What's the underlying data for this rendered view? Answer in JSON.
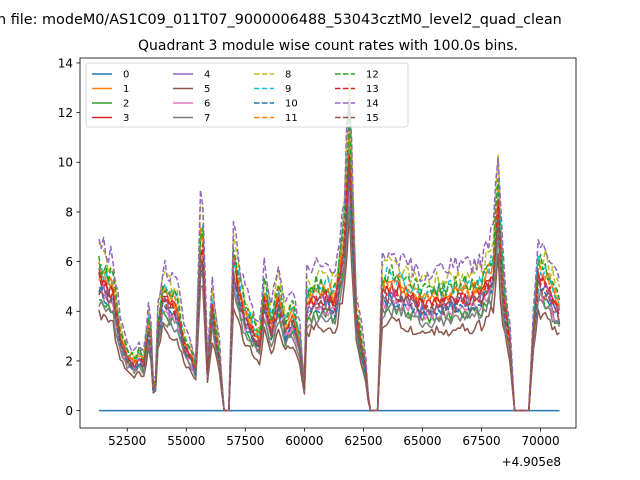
{
  "chart_data": {
    "type": "line",
    "suptitle": "n file: modeM0/AS1C09_011T07_9000006488_53043cztM0_level2_quad_clean",
    "title": "Quadrant 3 module wise count rates with 100.0s bins.",
    "xlabel": "",
    "ylabel": "",
    "x_offset_label": "+4.905e8",
    "xlim": [
      50500,
      71500
    ],
    "ylim": [
      -0.7,
      14.2
    ],
    "x_ticks": [
      52500,
      55000,
      57500,
      60000,
      62500,
      65000,
      67500,
      70000
    ],
    "x_tick_labels": [
      "52500",
      "55000",
      "57500",
      "60000",
      "62500",
      "65000",
      "67500",
      "70000"
    ],
    "y_ticks": [
      0,
      2,
      4,
      6,
      8,
      10,
      12,
      14
    ],
    "y_tick_labels": [
      "0",
      "2",
      "4",
      "6",
      "8",
      "10",
      "12",
      "14"
    ],
    "grid": false,
    "legend_position": "upper-left",
    "legend_columns": 4,
    "x_range": [
      51300,
      70800
    ],
    "bin_width": 100,
    "profile_anchors": [
      [
        51300,
        1.0
      ],
      [
        51500,
        0.95
      ],
      [
        51900,
        0.88
      ],
      [
        52200,
        0.55
      ],
      [
        52500,
        0.4
      ],
      [
        52800,
        0.35
      ],
      [
        53000,
        0.4
      ],
      [
        53200,
        0.35
      ],
      [
        53450,
        0.7
      ],
      [
        53650,
        0.0
      ],
      [
        53800,
        0.6
      ],
      [
        54000,
        0.85
      ],
      [
        54300,
        0.8
      ],
      [
        54600,
        0.75
      ],
      [
        54900,
        0.5
      ],
      [
        55200,
        0.4
      ],
      [
        55400,
        0.3
      ],
      [
        55650,
        1.45
      ],
      [
        55900,
        0.3
      ],
      [
        56100,
        0.75
      ],
      [
        56400,
        0.4
      ],
      [
        56600,
        0.0
      ],
      [
        56800,
        0.0
      ],
      [
        57000,
        1.1
      ],
      [
        57200,
        0.9
      ],
      [
        57500,
        0.7
      ],
      [
        57800,
        0.6
      ],
      [
        58100,
        0.5
      ],
      [
        58300,
        0.85
      ],
      [
        58600,
        0.6
      ],
      [
        58900,
        0.85
      ],
      [
        59200,
        0.6
      ],
      [
        59500,
        0.7
      ],
      [
        59800,
        0.5
      ],
      [
        60000,
        0.18
      ],
      [
        60100,
        0.8
      ],
      [
        60500,
        0.85
      ],
      [
        61000,
        0.85
      ],
      [
        61300,
        0.8
      ],
      [
        61700,
        1.3
      ],
      [
        61900,
        1.95
      ],
      [
        62200,
        0.7
      ],
      [
        62600,
        0.3
      ],
      [
        62750,
        0.0
      ],
      [
        63100,
        0.0
      ],
      [
        63300,
        0.9
      ],
      [
        63600,
        0.92
      ],
      [
        64000,
        0.9
      ],
      [
        64500,
        0.85
      ],
      [
        65000,
        0.8
      ],
      [
        65500,
        0.82
      ],
      [
        66000,
        0.82
      ],
      [
        66500,
        0.85
      ],
      [
        67000,
        0.85
      ],
      [
        67500,
        0.88
      ],
      [
        68000,
        1.05
      ],
      [
        68200,
        1.55
      ],
      [
        68400,
        0.9
      ],
      [
        68700,
        0.5
      ],
      [
        68900,
        0.0
      ],
      [
        69500,
        0.0
      ],
      [
        69700,
        0.6
      ],
      [
        69900,
        1.0
      ],
      [
        70200,
        0.95
      ],
      [
        70500,
        0.85
      ],
      [
        70800,
        0.75
      ]
    ],
    "series": [
      {
        "name": "0",
        "color": "#1f77b4",
        "dash": "solid",
        "level": 0.0
      },
      {
        "name": "1",
        "color": "#ff7f0e",
        "dash": "solid",
        "level": 5.6
      },
      {
        "name": "2",
        "color": "#2ca02c",
        "dash": "solid",
        "level": 4.6
      },
      {
        "name": "3",
        "color": "#d62728",
        "dash": "solid",
        "level": 5.4
      },
      {
        "name": "4",
        "color": "#9467bd",
        "dash": "solid",
        "level": 5.1
      },
      {
        "name": "5",
        "color": "#8c564b",
        "dash": "solid",
        "level": 3.9
      },
      {
        "name": "6",
        "color": "#e377c2",
        "dash": "solid",
        "level": 4.8
      },
      {
        "name": "7",
        "color": "#7f7f7f",
        "dash": "solid",
        "level": 4.4
      },
      {
        "name": "8",
        "color": "#bcbd22",
        "dash": "dashed",
        "level": 6.4
      },
      {
        "name": "9",
        "color": "#17becf",
        "dash": "dashed",
        "level": 5.9
      },
      {
        "name": "10",
        "color": "#1f77b4",
        "dash": "dashed",
        "level": 4.9
      },
      {
        "name": "11",
        "color": "#ff7f0e",
        "dash": "dashed",
        "level": 5.7
      },
      {
        "name": "12",
        "color": "#2ca02c",
        "dash": "dashed",
        "level": 6.0
      },
      {
        "name": "13",
        "color": "#d62728",
        "dash": "dashed",
        "level": 5.3
      },
      {
        "name": "14",
        "color": "#9467bd",
        "dash": "dashed",
        "level": 6.9
      },
      {
        "name": "15",
        "color": "#8c564b",
        "dash": "dashed",
        "level": 5.0
      }
    ]
  }
}
